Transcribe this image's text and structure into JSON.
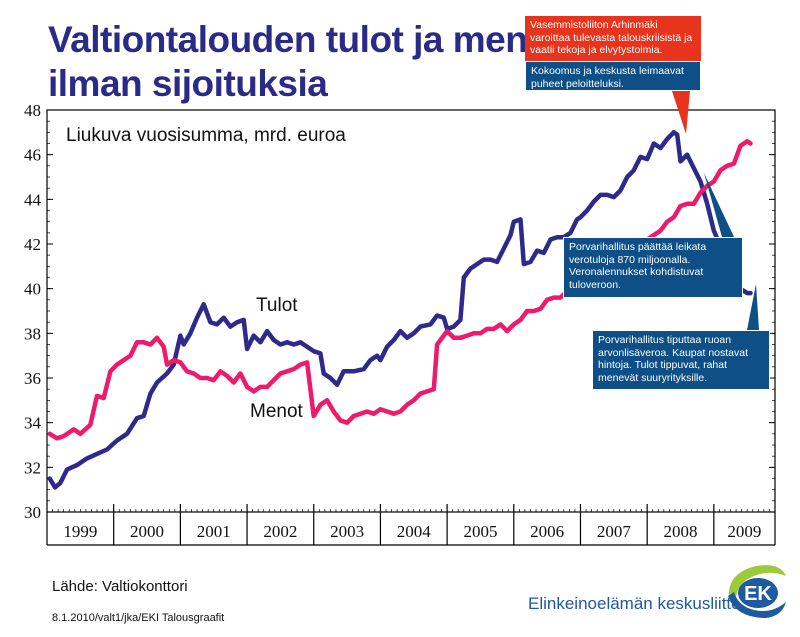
{
  "title": {
    "line1": "Valtiontalouden tulot ja menot",
    "line2": "ilman sijoituksia"
  },
  "source": "Lähde: Valtiokonttori",
  "footer": "8.1.2010/valt1/jka/EKI Talousgraafit",
  "brand": "Elinkeinoelämän keskusliitto",
  "logo_text": "EK",
  "colors": {
    "title": "#2b2a87",
    "tulot": "#2e2a8c",
    "menot": "#ee1a6a",
    "callout_red": "#e8341c",
    "callout_blue": "#0d4f86",
    "brand": "#1e5aa0"
  },
  "callouts": [
    "Vasemmistoliiton Arhinmäki varoittaa tulevasta talouskriisistä ja vaatii tekoja ja elvytystoimia.",
    "Kokoomus ja keskusta leimaavat puheet peloitteluksi.",
    "Porvarihallitus päättää leikata verotuloja 870 miljoonalla. Veronalennukset kohdistuvat tuloveroon.",
    "Porvarihallitus tiputtaa ruoan arvonlisäveroa. Kaupat nostavat hintoja. Tulot tippuvat, rahat menevät suuryrityksille."
  ],
  "chart_data": {
    "type": "line",
    "subtitle": "Liukuva vuosisumma, mrd. euroa",
    "ylim": [
      30,
      48
    ],
    "yticks": [
      30,
      32,
      34,
      36,
      38,
      40,
      42,
      44,
      46,
      48
    ],
    "xlim": [
      1999.0,
      2009.917
    ],
    "years": [
      "1999",
      "2000",
      "2001",
      "2002",
      "2003",
      "2004",
      "2005",
      "2006",
      "2007",
      "2008",
      "2009"
    ],
    "grid": false,
    "series": [
      {
        "name": "Tulot",
        "points": [
          [
            1999.04,
            31.5
          ],
          [
            1999.12,
            31.1
          ],
          [
            1999.2,
            31.3
          ],
          [
            1999.3,
            31.9
          ],
          [
            1999.45,
            32.1
          ],
          [
            1999.6,
            32.4
          ],
          [
            1999.75,
            32.6
          ],
          [
            1999.9,
            32.8
          ],
          [
            2000.05,
            33.2
          ],
          [
            2000.2,
            33.5
          ],
          [
            2000.35,
            34.2
          ],
          [
            2000.45,
            34.3
          ],
          [
            2000.55,
            35.3
          ],
          [
            2000.65,
            35.8
          ],
          [
            2000.8,
            36.2
          ],
          [
            2000.9,
            36.6
          ],
          [
            2001.0,
            37.9
          ],
          [
            2001.05,
            37.5
          ],
          [
            2001.15,
            38.0
          ],
          [
            2001.25,
            38.7
          ],
          [
            2001.35,
            39.3
          ],
          [
            2001.45,
            38.5
          ],
          [
            2001.55,
            38.4
          ],
          [
            2001.65,
            38.7
          ],
          [
            2001.75,
            38.3
          ],
          [
            2001.85,
            38.5
          ],
          [
            2001.95,
            38.6
          ],
          [
            2002.0,
            37.3
          ],
          [
            2002.1,
            37.9
          ],
          [
            2002.2,
            37.6
          ],
          [
            2002.3,
            38.1
          ],
          [
            2002.4,
            37.7
          ],
          [
            2002.5,
            37.5
          ],
          [
            2002.6,
            37.6
          ],
          [
            2002.7,
            37.5
          ],
          [
            2002.8,
            37.6
          ],
          [
            2002.9,
            37.4
          ],
          [
            2003.0,
            37.2
          ],
          [
            2003.1,
            37.1
          ],
          [
            2003.15,
            36.2
          ],
          [
            2003.25,
            36.0
          ],
          [
            2003.35,
            35.7
          ],
          [
            2003.45,
            36.3
          ],
          [
            2003.6,
            36.3
          ],
          [
            2003.75,
            36.4
          ],
          [
            2003.85,
            36.8
          ],
          [
            2003.95,
            37.0
          ],
          [
            2004.0,
            36.8
          ],
          [
            2004.1,
            37.4
          ],
          [
            2004.2,
            37.7
          ],
          [
            2004.3,
            38.1
          ],
          [
            2004.4,
            37.8
          ],
          [
            2004.5,
            38.0
          ],
          [
            2004.6,
            38.3
          ],
          [
            2004.75,
            38.4
          ],
          [
            2004.85,
            38.8
          ],
          [
            2004.95,
            38.7
          ],
          [
            2005.0,
            38.2
          ],
          [
            2005.1,
            38.3
          ],
          [
            2005.2,
            38.6
          ],
          [
            2005.25,
            40.5
          ],
          [
            2005.35,
            40.9
          ],
          [
            2005.45,
            41.1
          ],
          [
            2005.55,
            41.3
          ],
          [
            2005.65,
            41.3
          ],
          [
            2005.75,
            41.2
          ],
          [
            2005.85,
            41.8
          ],
          [
            2005.95,
            42.4
          ],
          [
            2006.0,
            43.0
          ],
          [
            2006.1,
            43.1
          ],
          [
            2006.15,
            41.1
          ],
          [
            2006.25,
            41.2
          ],
          [
            2006.35,
            41.7
          ],
          [
            2006.45,
            41.6
          ],
          [
            2006.55,
            42.2
          ],
          [
            2006.65,
            42.3
          ],
          [
            2006.75,
            42.3
          ],
          [
            2006.85,
            42.5
          ],
          [
            2006.95,
            43.1
          ],
          [
            2007.0,
            43.2
          ],
          [
            2007.1,
            43.5
          ],
          [
            2007.2,
            43.9
          ],
          [
            2007.3,
            44.2
          ],
          [
            2007.4,
            44.2
          ],
          [
            2007.5,
            44.1
          ],
          [
            2007.6,
            44.4
          ],
          [
            2007.7,
            45.0
          ],
          [
            2007.8,
            45.3
          ],
          [
            2007.9,
            45.9
          ],
          [
            2008.0,
            45.8
          ],
          [
            2008.1,
            46.5
          ],
          [
            2008.2,
            46.3
          ],
          [
            2008.3,
            46.7
          ],
          [
            2008.4,
            47.0
          ],
          [
            2008.45,
            46.9
          ],
          [
            2008.5,
            45.7
          ],
          [
            2008.6,
            46.0
          ],
          [
            2008.7,
            45.4
          ],
          [
            2008.8,
            44.8
          ],
          [
            2008.9,
            43.8
          ],
          [
            2009.0,
            42.6
          ],
          [
            2009.1,
            41.9
          ],
          [
            2009.2,
            41.2
          ],
          [
            2009.3,
            40.6
          ],
          [
            2009.4,
            40.0
          ],
          [
            2009.5,
            39.8
          ],
          [
            2009.55,
            39.8
          ]
        ]
      },
      {
        "name": "Menot",
        "points": [
          [
            1999.04,
            33.5
          ],
          [
            1999.15,
            33.3
          ],
          [
            1999.25,
            33.4
          ],
          [
            1999.4,
            33.7
          ],
          [
            1999.5,
            33.5
          ],
          [
            1999.65,
            33.9
          ],
          [
            1999.75,
            35.2
          ],
          [
            1999.85,
            35.1
          ],
          [
            1999.95,
            36.3
          ],
          [
            2000.05,
            36.6
          ],
          [
            2000.15,
            36.8
          ],
          [
            2000.25,
            37.0
          ],
          [
            2000.35,
            37.6
          ],
          [
            2000.45,
            37.6
          ],
          [
            2000.55,
            37.5
          ],
          [
            2000.65,
            37.8
          ],
          [
            2000.75,
            37.4
          ],
          [
            2000.8,
            36.6
          ],
          [
            2000.9,
            36.8
          ],
          [
            2001.0,
            36.7
          ],
          [
            2001.1,
            36.3
          ],
          [
            2001.2,
            36.2
          ],
          [
            2001.3,
            36.0
          ],
          [
            2001.4,
            36.0
          ],
          [
            2001.5,
            35.9
          ],
          [
            2001.6,
            36.3
          ],
          [
            2001.7,
            36.1
          ],
          [
            2001.8,
            35.8
          ],
          [
            2001.9,
            36.2
          ],
          [
            2002.0,
            35.6
          ],
          [
            2002.1,
            35.4
          ],
          [
            2002.2,
            35.6
          ],
          [
            2002.3,
            35.6
          ],
          [
            2002.4,
            35.9
          ],
          [
            2002.5,
            36.2
          ],
          [
            2002.6,
            36.3
          ],
          [
            2002.7,
            36.4
          ],
          [
            2002.8,
            36.6
          ],
          [
            2002.9,
            36.7
          ],
          [
            2003.0,
            34.3
          ],
          [
            2003.1,
            34.8
          ],
          [
            2003.2,
            35.0
          ],
          [
            2003.3,
            34.5
          ],
          [
            2003.4,
            34.1
          ],
          [
            2003.5,
            34.0
          ],
          [
            2003.6,
            34.3
          ],
          [
            2003.7,
            34.4
          ],
          [
            2003.8,
            34.5
          ],
          [
            2003.9,
            34.4
          ],
          [
            2004.0,
            34.6
          ],
          [
            2004.1,
            34.5
          ],
          [
            2004.2,
            34.4
          ],
          [
            2004.3,
            34.5
          ],
          [
            2004.4,
            34.8
          ],
          [
            2004.5,
            35.0
          ],
          [
            2004.6,
            35.3
          ],
          [
            2004.7,
            35.4
          ],
          [
            2004.8,
            35.5
          ],
          [
            2004.85,
            37.5
          ],
          [
            2004.95,
            37.9
          ],
          [
            2005.0,
            38.1
          ],
          [
            2005.1,
            37.8
          ],
          [
            2005.2,
            37.8
          ],
          [
            2005.3,
            37.9
          ],
          [
            2005.4,
            38.0
          ],
          [
            2005.5,
            38.0
          ],
          [
            2005.6,
            38.2
          ],
          [
            2005.7,
            38.2
          ],
          [
            2005.8,
            38.4
          ],
          [
            2005.9,
            38.1
          ],
          [
            2006.0,
            38.4
          ],
          [
            2006.1,
            38.6
          ],
          [
            2006.2,
            39.0
          ],
          [
            2006.3,
            39.0
          ],
          [
            2006.4,
            39.1
          ],
          [
            2006.5,
            39.5
          ],
          [
            2006.6,
            39.6
          ],
          [
            2006.7,
            39.6
          ],
          [
            2006.8,
            39.9
          ],
          [
            2006.9,
            40.2
          ],
          [
            2007.0,
            40.3
          ],
          [
            2007.1,
            40.6
          ],
          [
            2007.2,
            40.8
          ],
          [
            2007.3,
            41.1
          ],
          [
            2007.4,
            40.9
          ],
          [
            2007.5,
            41.3
          ],
          [
            2007.6,
            41.8
          ],
          [
            2007.7,
            42.0
          ],
          [
            2007.8,
            42.1
          ],
          [
            2007.9,
            42.1
          ],
          [
            2008.0,
            42.2
          ],
          [
            2008.1,
            42.4
          ],
          [
            2008.2,
            42.6
          ],
          [
            2008.3,
            43.0
          ],
          [
            2008.4,
            43.2
          ],
          [
            2008.5,
            43.7
          ],
          [
            2008.6,
            43.8
          ],
          [
            2008.7,
            43.8
          ],
          [
            2008.8,
            44.3
          ],
          [
            2008.9,
            44.6
          ],
          [
            2009.0,
            44.8
          ],
          [
            2009.1,
            45.3
          ],
          [
            2009.2,
            45.5
          ],
          [
            2009.3,
            45.6
          ],
          [
            2009.4,
            46.4
          ],
          [
            2009.5,
            46.6
          ],
          [
            2009.55,
            46.5
          ]
        ]
      }
    ]
  }
}
